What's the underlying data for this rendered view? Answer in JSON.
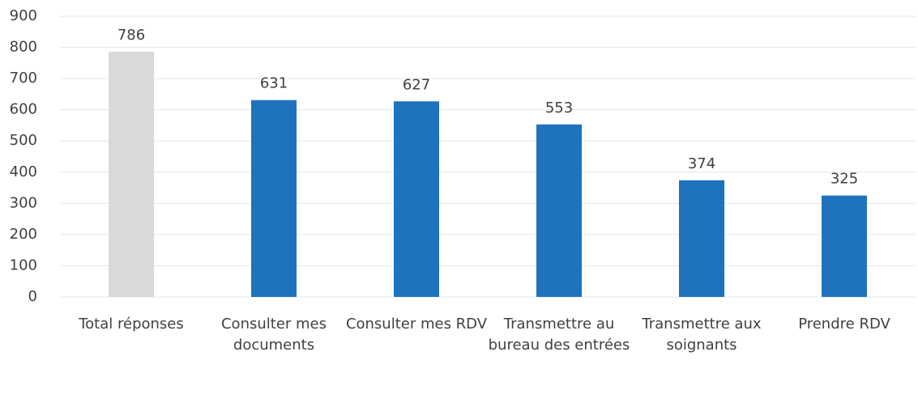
{
  "chart_data": {
    "type": "bar",
    "categories": [
      "Total réponses",
      "Consulter mes documents",
      "Consulter mes RDV",
      "Transmettre au bureau des entrées",
      "Transmettre aux soignants",
      "Prendre RDV"
    ],
    "values": [
      786,
      631,
      627,
      553,
      374,
      325
    ],
    "colors": [
      "#d9d9d9",
      "#1f72bd",
      "#1f72bd",
      "#1f72bd",
      "#1f72bd",
      "#1f72bd"
    ],
    "ylim": [
      0,
      900
    ],
    "yticks": [
      0,
      100,
      200,
      300,
      400,
      500,
      600,
      700,
      800,
      900
    ],
    "grid": true
  }
}
